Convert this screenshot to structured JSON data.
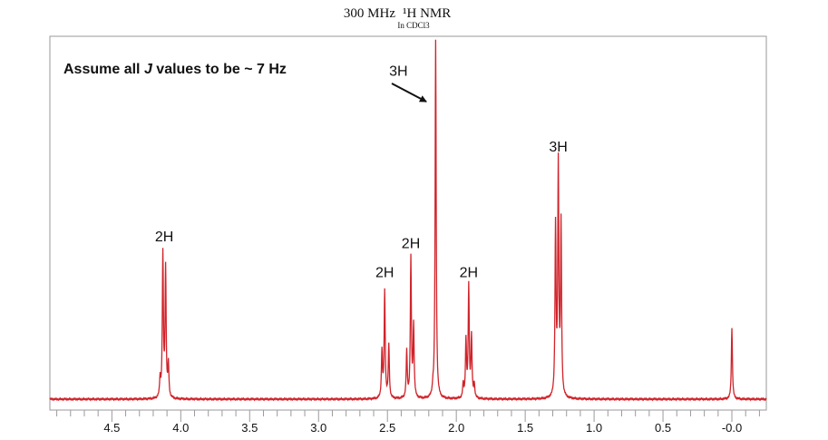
{
  "chart_data": {
    "type": "line",
    "title": "300 MHz",
    "title_nucleus": "¹H NMR",
    "subtitle": "In CDCl3",
    "xlabel": "",
    "ylabel": "",
    "x_reversed": true,
    "xlim": [
      4.95,
      -0.25
    ],
    "ylim": [
      0,
      100
    ],
    "x_ticks": [
      "4.5",
      "4.0",
      "3.5",
      "3.0",
      "2.5",
      "2.0",
      "1.5",
      "1.0",
      "0.5",
      "-0.0"
    ],
    "x_tick_values": [
      4.5,
      4.0,
      3.5,
      3.0,
      2.5,
      2.0,
      1.5,
      1.0,
      0.5,
      0.0
    ],
    "line_color": "#d0232a",
    "note": {
      "prefix": "Assume all ",
      "italic": "J",
      "suffix": " values to be ~ 7 Hz"
    },
    "series": [
      {
        "signals": [
          {
            "lines": [
              [
                4.15,
                5
              ],
              [
                4.13,
                40
              ],
              [
                4.11,
                36
              ],
              [
                4.09,
                9
              ]
            ]
          },
          {
            "lines": [
              [
                2.54,
                13
              ],
              [
                2.52,
                30
              ],
              [
                2.49,
                15
              ]
            ]
          },
          {
            "lines": [
              [
                2.36,
                13
              ],
              [
                2.33,
                39
              ],
              [
                2.31,
                20
              ]
            ]
          },
          {
            "lines": [
              [
                2.17,
                2
              ],
              [
                2.15,
                100
              ]
            ]
          },
          {
            "lines": [
              [
                1.95,
                4
              ],
              [
                1.93,
                16
              ],
              [
                1.91,
                31
              ],
              [
                1.89,
                17
              ],
              [
                1.87,
                4
              ]
            ]
          },
          {
            "lines": [
              [
                1.28,
                47
              ],
              [
                1.26,
                64
              ],
              [
                1.24,
                48
              ]
            ]
          },
          {
            "lines": [
              [
                0.0,
                20
              ]
            ]
          }
        ]
      }
    ],
    "integrals": [
      {
        "label": "2H",
        "x": 4.12,
        "y": 44
      },
      {
        "label": "2H",
        "x": 2.52,
        "y": 34
      },
      {
        "label": "2H",
        "x": 2.33,
        "y": 42
      },
      {
        "label": "3H",
        "x": 2.42,
        "y": 90
      },
      {
        "label": "2H",
        "x": 1.91,
        "y": 34
      },
      {
        "label": "3H",
        "x": 1.26,
        "y": 69
      }
    ]
  }
}
